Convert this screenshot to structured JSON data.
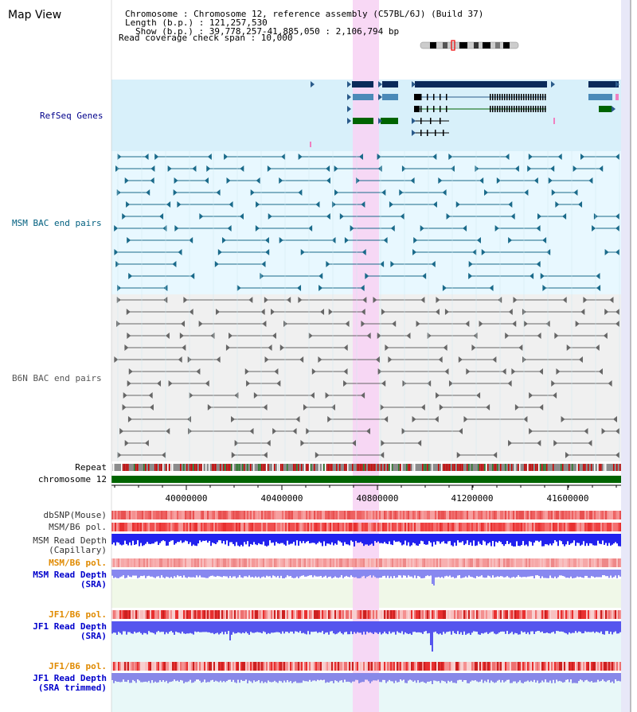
{
  "header": {
    "title": "Map View",
    "info_lines": [
      "Chromosome     : Chromosome 12, reference assembly (C57BL/6J) (Build 37)",
      "Length (b.p.) : 121,257,530",
      "Show (b.p.) : 39,778,257-41,885,050 : 2,106,794 bp",
      "Read coverage check span : 10,000"
    ]
  },
  "tracks": {
    "refseq": "RefSeq Genes",
    "msm_bac": "MSM BAC end pairs",
    "b6n_bac": "B6N BAC end pairs",
    "repeat": "Repeat",
    "chromosome": "chromosome 12",
    "dbsnp": "dbSNP(Mouse)",
    "msm_pol_1": "MSM/B6 pol.",
    "msm_depth_cap_1": "MSM Read Depth",
    "msm_depth_cap_2": "(Capillary)",
    "msm_pol_2": "MSM/B6 pol.",
    "msm_depth_sra_1": "MSM Read Depth",
    "msm_depth_sra_2": "(SRA)",
    "jf1_pol_1": "JF1/B6 pol.",
    "jf1_depth_sra_1": "JF1 Read Depth",
    "jf1_depth_sra_2": "(SRA)",
    "jf1_pol_2": "JF1/B6 pol.",
    "jf1_depth_trim_1": "JF1 Read Depth",
    "jf1_depth_trim_2": "(SRA trimmed)"
  },
  "axis": {
    "ticks": [
      "40000000",
      "40400000",
      "40800000",
      "41200000",
      "41600000"
    ]
  },
  "colors": {
    "refseq_bg": "#d8f0fa",
    "bac_bg": "#e8f8ff",
    "highlight": "#f7d4f4",
    "refseq_label": "#00008b",
    "msm_label": "#005f7f",
    "b6n_label": "#555555",
    "pol_label": "#e08a00",
    "depth_label": "#0000cc",
    "chrom_bar": "#006400"
  }
}
